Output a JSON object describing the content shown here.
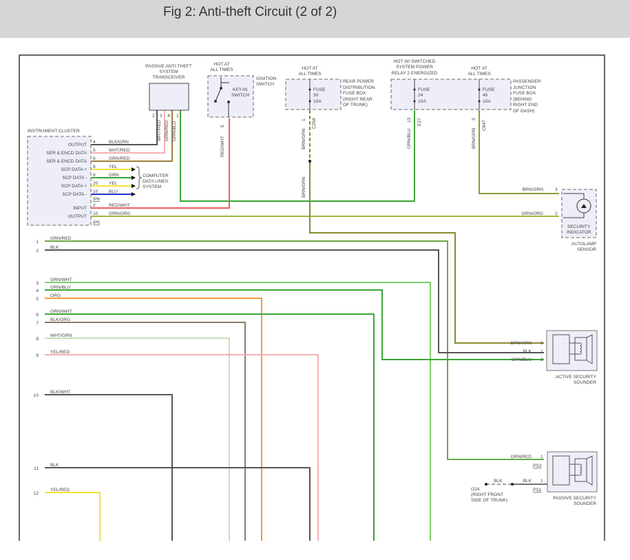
{
  "title": "Fig 2: Anti-theft Circuit (2 of 2)",
  "instrument_cluster": {
    "name": "INSTRUMENT CLUSTER",
    "pins": [
      {
        "label": "OUTPUT",
        "pin": "4",
        "wire": "BLK/GRN"
      },
      {
        "label": "SER & ENCD DATA",
        "pin": "5",
        "wire": "WHT/RED"
      },
      {
        "label": "SER & ENCD DATA",
        "pin": "6",
        "wire": "GRN/RED"
      },
      {
        "label": "SCP DATA +",
        "pin": "8",
        "wire": "YEL"
      },
      {
        "label": "SCP DATA -",
        "pin": "9",
        "wire": "GRN"
      },
      {
        "label": "SCP DATA +",
        "pin": "20",
        "wire": "YEL"
      },
      {
        "label": "SCP DATA -",
        "pin": "10",
        "wire": "BLU"
      },
      {
        "label": "INPUT",
        "pin": "2",
        "wire": "RED/WHT"
      },
      {
        "label": "OUTPUT",
        "pin": "10",
        "wire": "GRN/ORG"
      }
    ],
    "connector_ip6": "IP6",
    "connector_ip5": "IP5"
  },
  "computer_data_lines": [
    "COMPUTER",
    "DATA LINES",
    "SYSTEM"
  ],
  "transceiver": {
    "name": [
      "PASSIVE ANTI-THEFT",
      "SYSTEM",
      "TRANSCEIVER"
    ],
    "pins": [
      "2",
      "3",
      "4",
      "1"
    ],
    "wires": [
      "WHT/RED",
      "GRN/RED",
      "GRN/BLU"
    ]
  },
  "ignition_switch": {
    "hot": [
      "HOT AT",
      "ALL TIMES"
    ],
    "name": [
      "IGNITION",
      "SWITCH"
    ],
    "inner": [
      "KEY-IN",
      "SWITCH"
    ],
    "pin": "5",
    "wire": "RED/WHT"
  },
  "rear_fuse_box": {
    "hot": [
      "HOT AT",
      "ALL TIMES"
    ],
    "name": [
      "REAR POWER",
      "DISTRIBUTION",
      "FUSE BOX",
      "(RIGHT REAR",
      "OF TRUNK)"
    ],
    "fuse": [
      "FUSE",
      "30",
      "10A"
    ],
    "pin": "1",
    "connector": "C258",
    "wire": "BRN/GRN"
  },
  "passenger_fuse_box": {
    "hot_left": [
      "HOT W/ SWITCHED",
      "SYSTEM POWER",
      "RELAY 2 ENERGIZED"
    ],
    "hot_right": [
      "HOT AT",
      "ALL TIMES"
    ],
    "name": [
      "PASSENGER",
      "JUNCTION",
      "FUSE BOX",
      "(BEHIND",
      "RIGHT END",
      "OF DASH)"
    ],
    "fuse_a": [
      "FUSE",
      "24",
      "10A"
    ],
    "fuse_b": [
      "FUSE",
      "40",
      "10A"
    ],
    "pin_a": "13",
    "connector_a": "E27",
    "wire_a": "GRN/BLU",
    "pin_b": "3",
    "connector_b": "C847",
    "wire_b": "BRN/GRN"
  },
  "autolamp_sensor": {
    "name": [
      "AUTOLAMP",
      "SENSOR"
    ],
    "inner": [
      "SECURITY",
      "INDICATOR"
    ],
    "pins": [
      {
        "pin": "3",
        "wire": "BRN/GRN"
      },
      {
        "pin": "2",
        "wire": "GRN/ORG"
      }
    ]
  },
  "active_sounder": {
    "name": [
      "ACTIVE SECURITY",
      "SOUNDER"
    ],
    "pins": [
      {
        "pin": "3",
        "wire": "BRN/GRN"
      },
      {
        "pin": "1",
        "wire": "BLK"
      },
      {
        "pin": "2",
        "wire": "GRN/BLU"
      }
    ]
  },
  "passive_sounder": {
    "name": [
      "PASSIVE SECURITY",
      "SOUNDER"
    ],
    "pins": [
      {
        "pin": "1",
        "wire": "GRN/RED",
        "connector": "PS2"
      },
      {
        "pin": "1",
        "wire": "BLK",
        "connector": "PS1"
      }
    ]
  },
  "ground": {
    "wire": "BLK",
    "name": [
      "G24",
      "(RIGHT FRONT",
      "SIDE OF TRUNK)"
    ]
  },
  "left_wires": [
    {
      "num": "1",
      "wire": "GRN/RED"
    },
    {
      "num": "2",
      "wire": "BLK"
    },
    {
      "num": "3",
      "wire": "GRN/WHT"
    },
    {
      "num": "4",
      "wire": "GRN/BLU"
    },
    {
      "num": "5",
      "wire": "ORG"
    },
    {
      "num": "6",
      "wire": "GRN/WHT"
    },
    {
      "num": "7",
      "wire": "BLK/ORG"
    },
    {
      "num": "8",
      "wire": "WHT/GRN"
    },
    {
      "num": "9",
      "wire": "YEL/RED"
    },
    {
      "num": "10",
      "wire": "BLK/WHT"
    },
    {
      "num": "11",
      "wire": "BLK"
    },
    {
      "num": "12",
      "wire": "YEL/RED"
    }
  ],
  "colors": {
    "header_bg": "#d6d6d6",
    "component_fill": "#eeeef8",
    "BLK": "#555555",
    "GRN": "#3aa535",
    "GRN_LIGHT": "#7ccf6a",
    "RED": "#f06060",
    "ORG": "#f79a3a",
    "YEL": "#f5e23a",
    "BLU": "#2030d0",
    "BRN": "#a08040",
    "PINK": "#f5b0b0"
  }
}
